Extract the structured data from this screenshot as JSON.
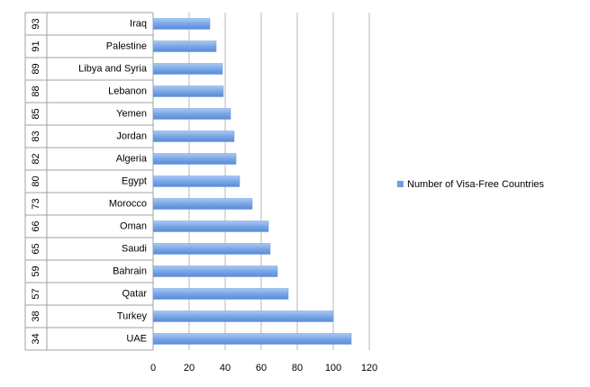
{
  "chart_data": {
    "type": "bar",
    "orientation": "horizontal",
    "categories": [
      "Iraq",
      "Palestine",
      "Libya and Syria",
      "Lebanon",
      "Yemen",
      "Jordan",
      "Algeria",
      "Egypt",
      "Morocco",
      "Oman",
      "Saudi",
      "Bahrain",
      "Qatar",
      "Turkey",
      "UAE"
    ],
    "ranks": [
      93,
      91,
      89,
      88,
      85,
      83,
      82,
      80,
      73,
      66,
      65,
      59,
      57,
      38,
      34
    ],
    "series": [
      {
        "name": "Number of Visa-Free Countries",
        "color": "#6f9de0",
        "values": [
          31.5,
          35,
          38.5,
          39,
          43,
          45,
          46,
          48,
          55,
          64,
          65,
          69,
          75,
          100,
          110
        ]
      }
    ],
    "xlim": [
      0,
      120
    ],
    "xticks": [
      0,
      20,
      40,
      60,
      80,
      100,
      120
    ],
    "grid": true,
    "legend": "right"
  }
}
